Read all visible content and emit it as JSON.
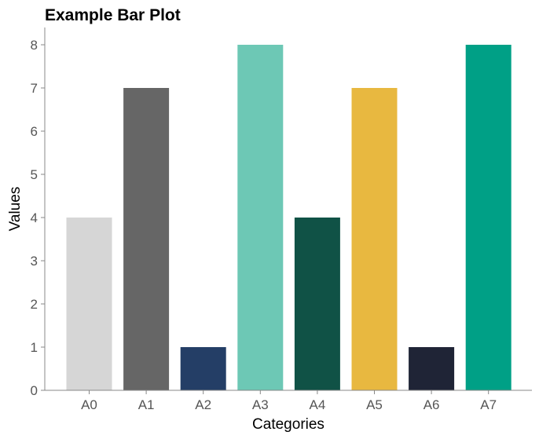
{
  "chart_data": {
    "type": "bar",
    "title": "Example Bar Plot",
    "xlabel": "Categories",
    "ylabel": "Values",
    "categories": [
      "A0",
      "A1",
      "A2",
      "A3",
      "A4",
      "A5",
      "A6",
      "A7"
    ],
    "values": [
      4,
      7,
      1,
      8,
      4,
      7,
      1,
      8
    ],
    "colors": [
      "#d6d6d6",
      "#666666",
      "#243e66",
      "#6dc8b5",
      "#105246",
      "#e8b840",
      "#1f2436",
      "#00a086"
    ],
    "ylim": [
      0,
      8.4
    ],
    "yticks": [
      0,
      1,
      2,
      3,
      4,
      5,
      6,
      7,
      8
    ],
    "grid": false,
    "legend": "none"
  }
}
